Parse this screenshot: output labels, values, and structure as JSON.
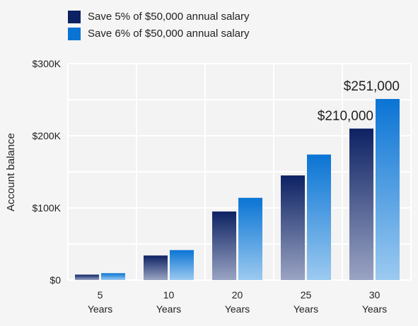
{
  "chart_data": {
    "type": "bar",
    "categories": [
      [
        "5",
        "Years"
      ],
      [
        "10",
        "Years"
      ],
      [
        "20",
        "Years"
      ],
      [
        "25",
        "Years"
      ],
      [
        "30",
        "Years"
      ]
    ],
    "series": [
      {
        "name": "Save 5% of $50,000 annual salary",
        "values": [
          7500,
          34000,
          95000,
          145000,
          210000
        ],
        "color_top": "#0d2263",
        "color_bottom": "#9aa4c3"
      },
      {
        "name": "Save 6% of $50,000 annual salary",
        "values": [
          9500,
          41500,
          114000,
          174000,
          251000
        ],
        "color_top": "#0a74d4",
        "color_bottom": "#9ccaf0"
      }
    ],
    "data_labels": [
      {
        "series": 0,
        "category": 4,
        "text": "$210,000"
      },
      {
        "series": 1,
        "category": 4,
        "text": "$251,000"
      }
    ],
    "ylabel": "Account balance",
    "xlabel": "",
    "ylim": [
      0,
      300000
    ],
    "yticks": [
      {
        "value": 0,
        "label": "$0"
      },
      {
        "value": 100000,
        "label": "$100K"
      },
      {
        "value": 200000,
        "label": "$200K"
      },
      {
        "value": 300000,
        "label": "$300K"
      }
    ],
    "grid": true,
    "legend_position": "top-left"
  }
}
